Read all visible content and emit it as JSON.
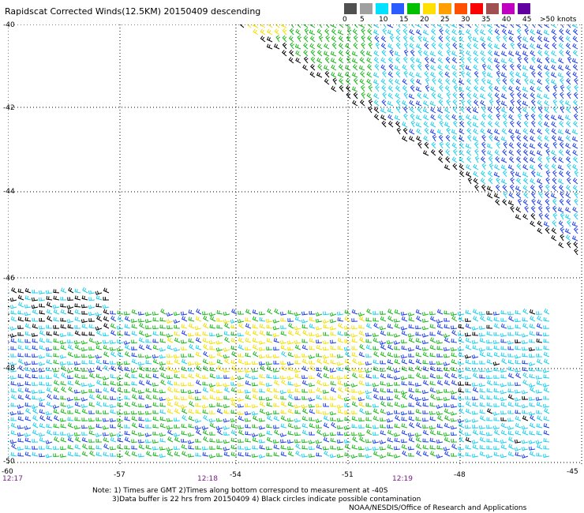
{
  "title": "Rapidscat Corrected Winds(12.5KM) 20150409 descending",
  "speed_scale": {
    "labels": [
      "0",
      "5",
      "10",
      "15",
      "20",
      "25",
      "30",
      "35",
      "40",
      "45",
      ">50 knots"
    ],
    "colors": [
      "#505050",
      "#a0a0a0",
      "#00e0ff",
      "#2b5cff",
      "#00c000",
      "#ffe000",
      "#ffa000",
      "#ff5000",
      "#ff0000",
      "#a05050",
      "#c000c0",
      "#6000a0"
    ]
  },
  "map": {
    "lat_labels": [
      "-40",
      "-42",
      "-44",
      "-46",
      "-48",
      "-50"
    ],
    "lon_labels": [
      "-60",
      "-57",
      "-54",
      "-51",
      "-48",
      "-45"
    ],
    "time_labels": [
      "12:17",
      "12:18",
      "12:19"
    ]
  },
  "notes": {
    "line1": "Note: 1) Times are GMT 2)Times along bottom correspond to measurement at -40S",
    "line2": "3)Data buffer is 22 hrs from 20150409 4) Black circles indicate possible contamination",
    "credit": "NOAA/NESDIS/Office of Research and Applications"
  }
}
